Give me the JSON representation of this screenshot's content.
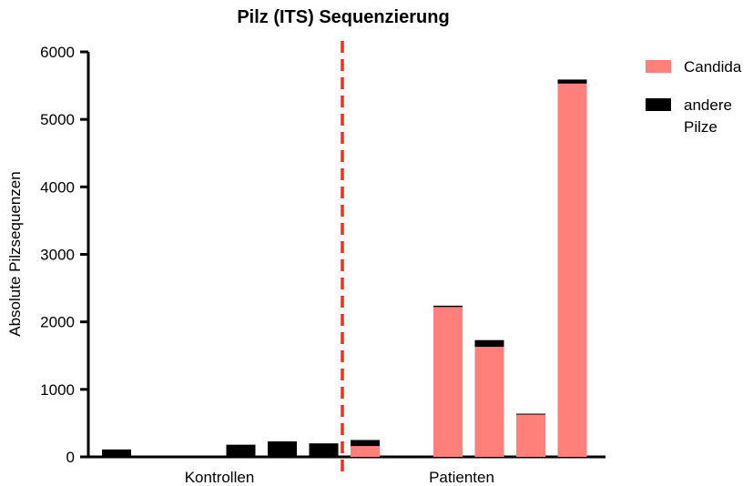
{
  "chart_data": {
    "type": "bar",
    "stacked": true,
    "title": "Pilz (ITS) Sequenzierung",
    "xlabel": "",
    "ylabel": "Absolute Pilzsequenzen",
    "ylim": [
      0,
      6000
    ],
    "yticks": [
      "0",
      "1000",
      "2000",
      "3000",
      "4000",
      "5000",
      "6000"
    ],
    "groups": [
      "Kontrollen",
      "Patienten"
    ],
    "divider_color": "#e8301e",
    "series": [
      {
        "name": "Candida",
        "color": "#ff7f7a",
        "values": [
          0,
          0,
          0,
          0,
          0,
          0,
          160,
          0,
          2220,
          1630,
          630,
          5530
        ]
      },
      {
        "name": "andere Pilze",
        "color": "#000000",
        "values": [
          110,
          0,
          0,
          180,
          230,
          200,
          90,
          0,
          20,
          100,
          10,
          60
        ]
      }
    ],
    "legend": {
      "position": "top-right",
      "entries": [
        {
          "lines": [
            "Candida"
          ]
        },
        {
          "lines": [
            "andere",
            "Pilze"
          ]
        }
      ]
    },
    "grid": false
  }
}
